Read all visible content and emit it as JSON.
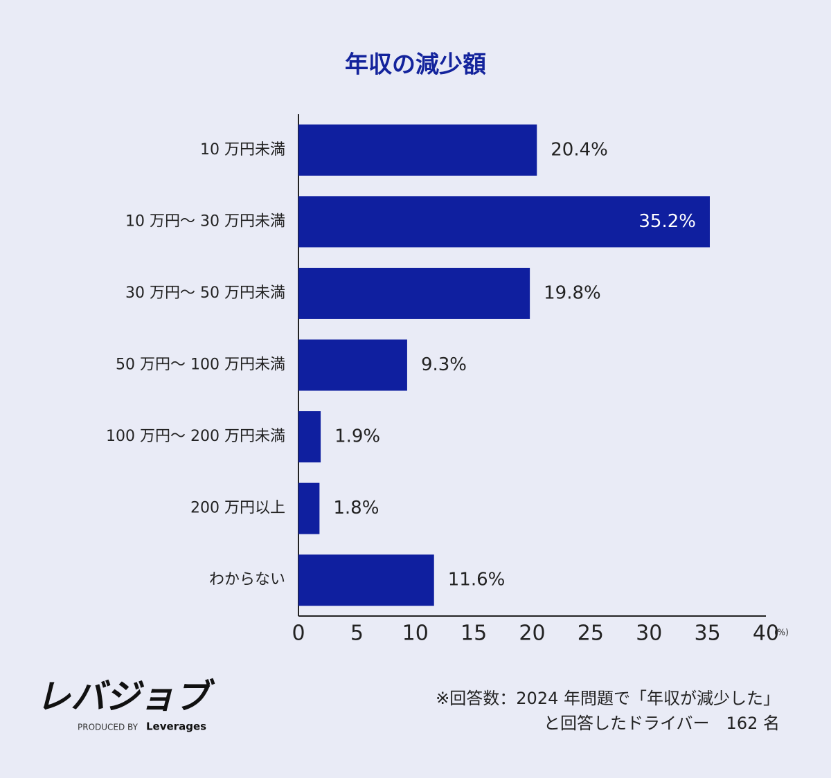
{
  "chart_data": {
    "type": "bar",
    "orientation": "horizontal",
    "title": "年収の減少額",
    "categories": [
      "10 万円未満",
      "10 万円〜 30 万円未満",
      "30 万円〜 50 万円未満",
      "50 万円〜 100 万円未満",
      "100 万円〜 200 万円未満",
      "200 万円以上",
      "わからない"
    ],
    "values": [
      20.4,
      35.2,
      19.8,
      9.3,
      1.9,
      1.8,
      11.6
    ],
    "value_labels": [
      "20.4%",
      "35.2%",
      "19.8%",
      "9.3%",
      "1.9%",
      "1.8%",
      "11.6%"
    ],
    "color": "#0f1f9f",
    "xlim": [
      0,
      40
    ],
    "xticks": [
      0,
      5,
      10,
      15,
      20,
      25,
      30,
      35,
      40
    ],
    "x_unit": "(%)",
    "grid": false
  },
  "footer": {
    "logo": "レバジョブ",
    "logo_sub": "PRODUCED BY",
    "logo_brand": "Leverages",
    "note": [
      "※回答数：2024 年問題で「年収が減少した」",
      "と回答したドライバー　162 名"
    ]
  }
}
